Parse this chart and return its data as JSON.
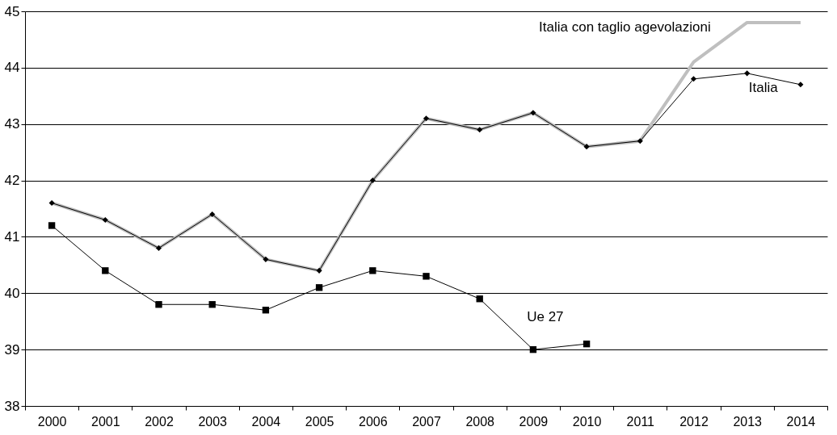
{
  "chart_data": {
    "type": "line",
    "categories": [
      "2000",
      "2001",
      "2002",
      "2003",
      "2004",
      "2005",
      "2006",
      "2007",
      "2008",
      "2009",
      "2010",
      "2011",
      "2012",
      "2013",
      "2014"
    ],
    "series": [
      {
        "name": "Italia con taglio agevolazioni",
        "color": "#bfbfbf",
        "marker": "none",
        "values": [
          41.6,
          41.3,
          40.8,
          41.4,
          40.6,
          40.4,
          42.0,
          43.1,
          42.9,
          43.2,
          42.6,
          42.7,
          44.1,
          44.8,
          44.8
        ]
      },
      {
        "name": "Italia",
        "color": "#000000",
        "marker": "diamond",
        "values": [
          41.6,
          41.3,
          40.8,
          41.4,
          40.6,
          40.4,
          42.0,
          43.1,
          42.9,
          43.2,
          42.6,
          42.7,
          43.8,
          43.9,
          43.7
        ]
      },
      {
        "name": "Ue 27",
        "color": "#000000",
        "marker": "square",
        "values": [
          41.2,
          40.4,
          39.8,
          39.8,
          39.7,
          40.1,
          40.4,
          40.3,
          39.9,
          39.0,
          39.1,
          null,
          null,
          null,
          null
        ]
      }
    ],
    "ylim": [
      38,
      45
    ],
    "yticks": [
      38,
      39,
      40,
      41,
      42,
      43,
      44,
      45
    ],
    "grid": "y"
  }
}
